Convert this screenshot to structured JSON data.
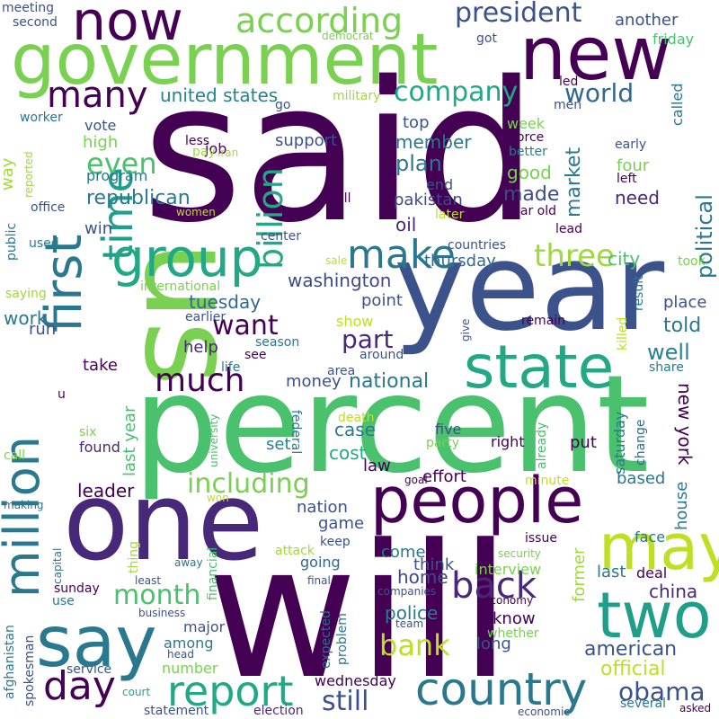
{
  "words": [
    {
      "text": "said",
      "color": "#440154"
    },
    {
      "text": "will",
      "color": "#440154"
    },
    {
      "text": "percent",
      "color": "#4ac16d"
    },
    {
      "text": "year",
      "color": "#3b528b"
    },
    {
      "text": "one",
      "color": "#482878"
    },
    {
      "text": "us",
      "color": "#7ad151"
    },
    {
      "text": "government",
      "color": "#7ad151"
    },
    {
      "text": "new",
      "color": "#440154"
    },
    {
      "text": "people",
      "color": "#440154"
    },
    {
      "text": "state",
      "color": "#22a884"
    },
    {
      "text": "two",
      "color": "#1f9e89"
    },
    {
      "text": "may",
      "color": "#bddf26"
    },
    {
      "text": "say",
      "color": "#2a788e"
    },
    {
      "text": "first",
      "color": "#2a788e"
    },
    {
      "text": "time",
      "color": "#1f9e89"
    },
    {
      "text": "million",
      "color": "#2a788e"
    },
    {
      "text": "now",
      "color": "#440154"
    },
    {
      "text": "group",
      "color": "#22a884"
    },
    {
      "text": "country",
      "color": "#2a788e"
    },
    {
      "text": "report",
      "color": "#22a884"
    },
    {
      "text": "make",
      "color": "#2a788e"
    },
    {
      "text": "according",
      "color": "#7ad151"
    },
    {
      "text": "day",
      "color": "#440154"
    },
    {
      "text": "many",
      "color": "#440154"
    },
    {
      "text": "billion",
      "color": "#22a884"
    },
    {
      "text": "president",
      "color": "#3b528b"
    },
    {
      "text": "company",
      "color": "#22a884"
    },
    {
      "text": "world",
      "color": "#31688e"
    },
    {
      "text": "even",
      "color": "#4ac16d"
    },
    {
      "text": "want",
      "color": "#440154"
    },
    {
      "text": "much",
      "color": "#440154"
    },
    {
      "text": "three",
      "color": "#a0da39"
    },
    {
      "text": "part",
      "color": "#482878"
    },
    {
      "text": "back",
      "color": "#482878"
    },
    {
      "text": "including",
      "color": "#7ad151"
    },
    {
      "text": "month",
      "color": "#4ac16d"
    },
    {
      "text": "bank",
      "color": "#bddf26"
    },
    {
      "text": "political",
      "color": "#2a788e"
    },
    {
      "text": "republican",
      "color": "#2a788e"
    },
    {
      "text": "obama",
      "color": "#3b528b"
    },
    {
      "text": "still",
      "color": "#3b528b"
    },
    {
      "text": "united states",
      "color": "#26828e"
    },
    {
      "text": "market",
      "color": "#2a788e"
    },
    {
      "text": "national",
      "color": "#2a788e"
    },
    {
      "text": "leader",
      "color": "#440154"
    },
    {
      "text": "official",
      "color": "#bddf26"
    },
    {
      "text": "american",
      "color": "#3b528b"
    },
    {
      "text": "new york",
      "color": "#440154"
    },
    {
      "text": "member",
      "color": "#2a788e"
    },
    {
      "text": "plan",
      "color": "#2a788e"
    },
    {
      "text": "made",
      "color": "#3e4989"
    },
    {
      "text": "washington",
      "color": "#3e4989"
    },
    {
      "text": "tuesday",
      "color": "#31688e"
    },
    {
      "text": "well",
      "color": "#26828e"
    },
    {
      "text": "told",
      "color": "#2a788e"
    },
    {
      "text": "home",
      "color": "#3e4989"
    },
    {
      "text": "police",
      "color": "#2a788e"
    },
    {
      "text": "china",
      "color": "#482878"
    },
    {
      "text": "house",
      "color": "#2a788e"
    },
    {
      "text": "work",
      "color": "#2a788e"
    },
    {
      "text": "last year",
      "color": "#4ac16d"
    },
    {
      "text": "case",
      "color": "#2a788e"
    },
    {
      "text": "cost",
      "color": "#22a884"
    },
    {
      "text": "way",
      "color": "#a0da39"
    },
    {
      "text": "city",
      "color": "#4ac16d"
    },
    {
      "text": "pakistan",
      "color": "#3e4989"
    },
    {
      "text": "oil",
      "color": "#482878"
    },
    {
      "text": "need",
      "color": "#482878"
    },
    {
      "text": "good",
      "color": "#7ad151"
    },
    {
      "text": "thursday",
      "color": "#31688e"
    },
    {
      "text": "place",
      "color": "#3b528b"
    },
    {
      "text": "top",
      "color": "#3b528b"
    },
    {
      "text": "vote",
      "color": "#3b528b"
    },
    {
      "text": "high",
      "color": "#7ad151"
    },
    {
      "text": "program",
      "color": "#2a788e"
    },
    {
      "text": "support",
      "color": "#3b528b"
    },
    {
      "text": "another",
      "color": "#3b528b"
    },
    {
      "text": "friday",
      "color": "#4ac16d"
    },
    {
      "text": "called",
      "color": "#2a788e"
    },
    {
      "text": "law",
      "color": "#440154"
    },
    {
      "text": "long",
      "color": "#3b528b"
    },
    {
      "text": "know",
      "color": "#440154"
    },
    {
      "text": "game",
      "color": "#3b528b"
    },
    {
      "text": "nation",
      "color": "#3b528b"
    },
    {
      "text": "think",
      "color": "#3b528b"
    },
    {
      "text": "come",
      "color": "#2a788e"
    },
    {
      "text": "going",
      "color": "#31688e"
    },
    {
      "text": "based",
      "color": "#2a788e"
    },
    {
      "text": "effort",
      "color": "#440154"
    },
    {
      "text": "put",
      "color": "#440154"
    },
    {
      "text": "set",
      "color": "#26828e"
    },
    {
      "text": "money",
      "color": "#3b528b"
    },
    {
      "text": "help",
      "color": "#482878"
    },
    {
      "text": "take",
      "color": "#440154"
    },
    {
      "text": "win",
      "color": "#3b528b"
    },
    {
      "text": "run",
      "color": "#3b528b"
    },
    {
      "text": "four",
      "color": "#7ad151"
    },
    {
      "text": "end",
      "color": "#3b528b"
    },
    {
      "text": "week",
      "color": "#7ad151"
    },
    {
      "text": "job",
      "color": "#440154"
    },
    {
      "text": "show",
      "color": "#bddf26"
    },
    {
      "text": "point",
      "color": "#3b528b"
    },
    {
      "text": "found",
      "color": "#482878"
    },
    {
      "text": "interview",
      "color": "#7ad151"
    },
    {
      "text": "former",
      "color": "#a0da39"
    },
    {
      "text": "last",
      "color": "#2a788e"
    },
    {
      "text": "deal",
      "color": "#440154"
    },
    {
      "text": "saturday",
      "color": "#2a788e"
    },
    {
      "text": "change",
      "color": "#31688e"
    },
    {
      "text": "five",
      "color": "#3b528b"
    },
    {
      "text": "right",
      "color": "#440154"
    },
    {
      "text": "party",
      "color": "#7ad151"
    },
    {
      "text": "face",
      "color": "#2a788e"
    },
    {
      "text": "number",
      "color": "#7ad151"
    },
    {
      "text": "among",
      "color": "#2a788e"
    },
    {
      "text": "major",
      "color": "#3b528b"
    },
    {
      "text": "service",
      "color": "#3b528b"
    },
    {
      "text": "wednesday",
      "color": "#440154"
    },
    {
      "text": "issue",
      "color": "#440154"
    },
    {
      "text": "problem",
      "color": "#2a788e"
    },
    {
      "text": "whether",
      "color": "#7ad151"
    },
    {
      "text": "economy",
      "color": "#440154"
    },
    {
      "text": "team",
      "color": "#3b528b"
    },
    {
      "text": "expected",
      "color": "#31688e"
    },
    {
      "text": "companies",
      "color": "#3b528b"
    },
    {
      "text": "business",
      "color": "#3b528b"
    },
    {
      "text": "sunday",
      "color": "#440154"
    },
    {
      "text": "use",
      "color": "#2a788e"
    },
    {
      "text": "capital",
      "color": "#2a788e"
    },
    {
      "text": "afghanistan",
      "color": "#2a788e"
    },
    {
      "text": "spokesman",
      "color": "#3b528b"
    },
    {
      "text": "statement",
      "color": "#3b528b"
    },
    {
      "text": "court",
      "color": "#22a884"
    },
    {
      "text": "head",
      "color": "#3b528b"
    },
    {
      "text": "election",
      "color": "#482878"
    },
    {
      "text": "several",
      "color": "#2a788e"
    },
    {
      "text": "asked",
      "color": "#440154"
    },
    {
      "text": "economic",
      "color": "#3b528b"
    },
    {
      "text": "final",
      "color": "#3b528b"
    },
    {
      "text": "least",
      "color": "#3b528b"
    },
    {
      "text": "away",
      "color": "#2a788e"
    },
    {
      "text": "thing",
      "color": "#a0da39"
    },
    {
      "text": "financial",
      "color": "#4ac16d"
    },
    {
      "text": "attack",
      "color": "#a0da39"
    },
    {
      "text": "keep",
      "color": "#3b528b"
    },
    {
      "text": "security",
      "color": "#7ad151"
    },
    {
      "text": "won",
      "color": "#bddf26"
    },
    {
      "text": "making",
      "color": "#2a788e"
    },
    {
      "text": "call",
      "color": "#7ad151"
    },
    {
      "text": "six",
      "color": "#7ad151"
    },
    {
      "text": "u",
      "color": "#440154"
    },
    {
      "text": "federal",
      "color": "#2a788e"
    },
    {
      "text": "death",
      "color": "#bddf26"
    },
    {
      "text": "university",
      "color": "#4ac16d"
    },
    {
      "text": "minute",
      "color": "#bddf26"
    },
    {
      "text": "goal",
      "color": "#440154"
    },
    {
      "text": "already",
      "color": "#4ac16d"
    },
    {
      "text": "life",
      "color": "#2a788e"
    },
    {
      "text": "see",
      "color": "#440154"
    },
    {
      "text": "area",
      "color": "#3b528b"
    },
    {
      "text": "around",
      "color": "#3b528b"
    },
    {
      "text": "season",
      "color": "#2a788e"
    },
    {
      "text": "earlier",
      "color": "#3b528b"
    },
    {
      "text": "international",
      "color": "#7ad151"
    },
    {
      "text": "saying",
      "color": "#a0da39"
    },
    {
      "text": "used",
      "color": "#2a788e"
    },
    {
      "text": "public",
      "color": "#2a788e"
    },
    {
      "text": "office",
      "color": "#3b528b"
    },
    {
      "text": "reported",
      "color": "#a0da39"
    },
    {
      "text": "worker",
      "color": "#2a788e"
    },
    {
      "text": "meeting",
      "color": "#3b528b"
    },
    {
      "text": "second",
      "color": "#3b528b"
    },
    {
      "text": "democrat",
      "color": "#7ad151"
    },
    {
      "text": "got",
      "color": "#3b528b"
    },
    {
      "text": "military",
      "color": "#a0da39"
    },
    {
      "text": "go",
      "color": "#3b528b"
    },
    {
      "text": "led",
      "color": "#440154"
    },
    {
      "text": "men",
      "color": "#3b528b"
    },
    {
      "text": "less",
      "color": "#440154"
    },
    {
      "text": "pay",
      "color": "#a0da39"
    },
    {
      "text": "iran",
      "color": "#a0da39"
    },
    {
      "text": "force",
      "color": "#440154"
    },
    {
      "text": "better",
      "color": "#2a788e"
    },
    {
      "text": "early",
      "color": "#3b528b"
    },
    {
      "text": "left",
      "color": "#440154"
    },
    {
      "text": "bill",
      "color": "#440154"
    },
    {
      "text": "women",
      "color": "#bddf26"
    },
    {
      "text": "later",
      "color": "#bddf26"
    },
    {
      "text": "year old",
      "color": "#440154"
    },
    {
      "text": "lead",
      "color": "#440154"
    },
    {
      "text": "center",
      "color": "#3b528b"
    },
    {
      "text": "countries",
      "color": "#3b528b"
    },
    {
      "text": "sale",
      "color": "#bddf26"
    },
    {
      "text": "took",
      "color": "#7ad151"
    },
    {
      "text": "result",
      "color": "#2a788e"
    },
    {
      "text": "remain",
      "color": "#440154"
    },
    {
      "text": "give",
      "color": "#3b528b"
    },
    {
      "text": "killed",
      "color": "#bddf26"
    },
    {
      "text": "share",
      "color": "#2a788e"
    }
  ]
}
